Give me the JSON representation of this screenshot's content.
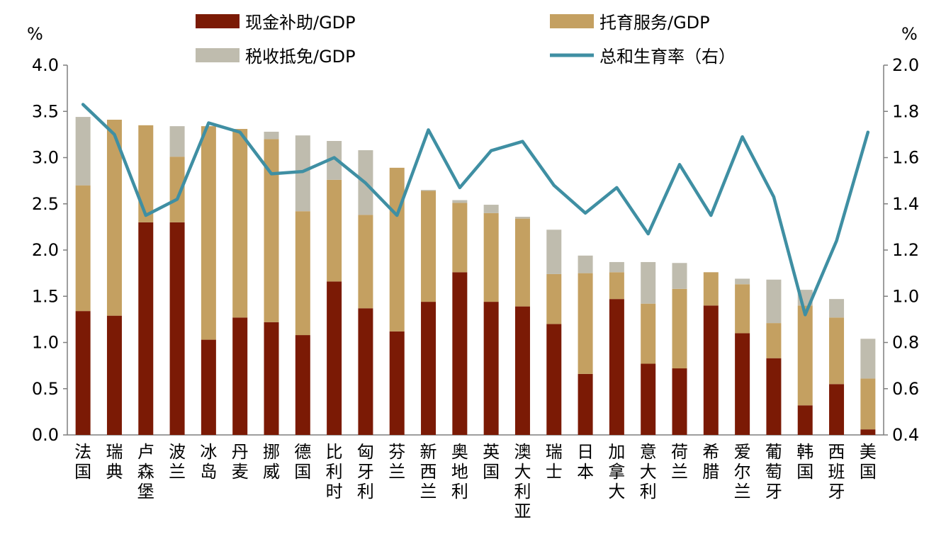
{
  "chart_data": {
    "type": "bar",
    "stacked": true,
    "left_unit": "%",
    "right_unit": "%",
    "left_ylim": [
      0,
      4.0
    ],
    "right_ylim": [
      0.4,
      2.0
    ],
    "left_ticks": [
      "0.0",
      "0.5",
      "1.0",
      "1.5",
      "2.0",
      "2.5",
      "3.0",
      "3.5",
      "4.0"
    ],
    "right_ticks": [
      "0.4",
      "0.6",
      "0.8",
      "1.0",
      "1.2",
      "1.4",
      "1.6",
      "1.8",
      "2.0"
    ],
    "categories": [
      "法国",
      "瑞典",
      "卢森堡",
      "波兰",
      "冰岛",
      "丹麦",
      "挪威",
      "德国",
      "比利时",
      "匈牙利",
      "芬兰",
      "新西兰",
      "奥地利",
      "英国",
      "澳大利亚",
      "瑞士",
      "日本",
      "加拿大",
      "意大利",
      "荷兰",
      "希腊",
      "爱尔兰",
      "葡萄牙",
      "韩国",
      "西班牙",
      "美国"
    ],
    "series": [
      {
        "name": "现金补助/GDP",
        "type": "bar",
        "axis": "left",
        "color": "#7B1A05",
        "values": [
          1.34,
          1.29,
          2.3,
          2.3,
          1.03,
          1.27,
          1.22,
          1.08,
          1.66,
          1.37,
          1.12,
          1.44,
          1.76,
          1.44,
          1.39,
          1.2,
          0.66,
          1.47,
          0.77,
          0.72,
          1.4,
          1.1,
          0.83,
          0.32,
          0.55,
          0.06
        ]
      },
      {
        "name": "托育服务/GDP",
        "type": "bar",
        "axis": "left",
        "color": "#C4A061",
        "values": [
          1.36,
          2.12,
          1.05,
          0.71,
          2.31,
          2.04,
          1.98,
          1.34,
          1.1,
          1.01,
          1.77,
          1.2,
          0.75,
          0.96,
          0.95,
          0.54,
          1.09,
          0.29,
          0.65,
          0.86,
          0.36,
          0.53,
          0.38,
          1.08,
          0.72,
          0.55
        ]
      },
      {
        "name": "税收抵免/GDP",
        "type": "bar",
        "axis": "left",
        "color": "#BFBCAE",
        "values": [
          0.74,
          0.0,
          0.0,
          0.33,
          0.0,
          0.0,
          0.08,
          0.82,
          0.42,
          0.7,
          0.0,
          0.01,
          0.03,
          0.09,
          0.02,
          0.48,
          0.19,
          0.11,
          0.45,
          0.28,
          0.0,
          0.06,
          0.47,
          0.17,
          0.2,
          0.43
        ]
      },
      {
        "name": "总和生育率（右）",
        "type": "line",
        "axis": "right",
        "color": "#3F8FA3",
        "values": [
          1.83,
          1.7,
          1.35,
          1.42,
          1.75,
          1.71,
          1.53,
          1.54,
          1.6,
          1.49,
          1.35,
          1.72,
          1.47,
          1.63,
          1.67,
          1.48,
          1.36,
          1.47,
          1.27,
          1.57,
          1.35,
          1.69,
          1.43,
          0.92,
          1.24,
          1.71
        ]
      }
    ],
    "legend": {
      "placement": "top"
    }
  }
}
